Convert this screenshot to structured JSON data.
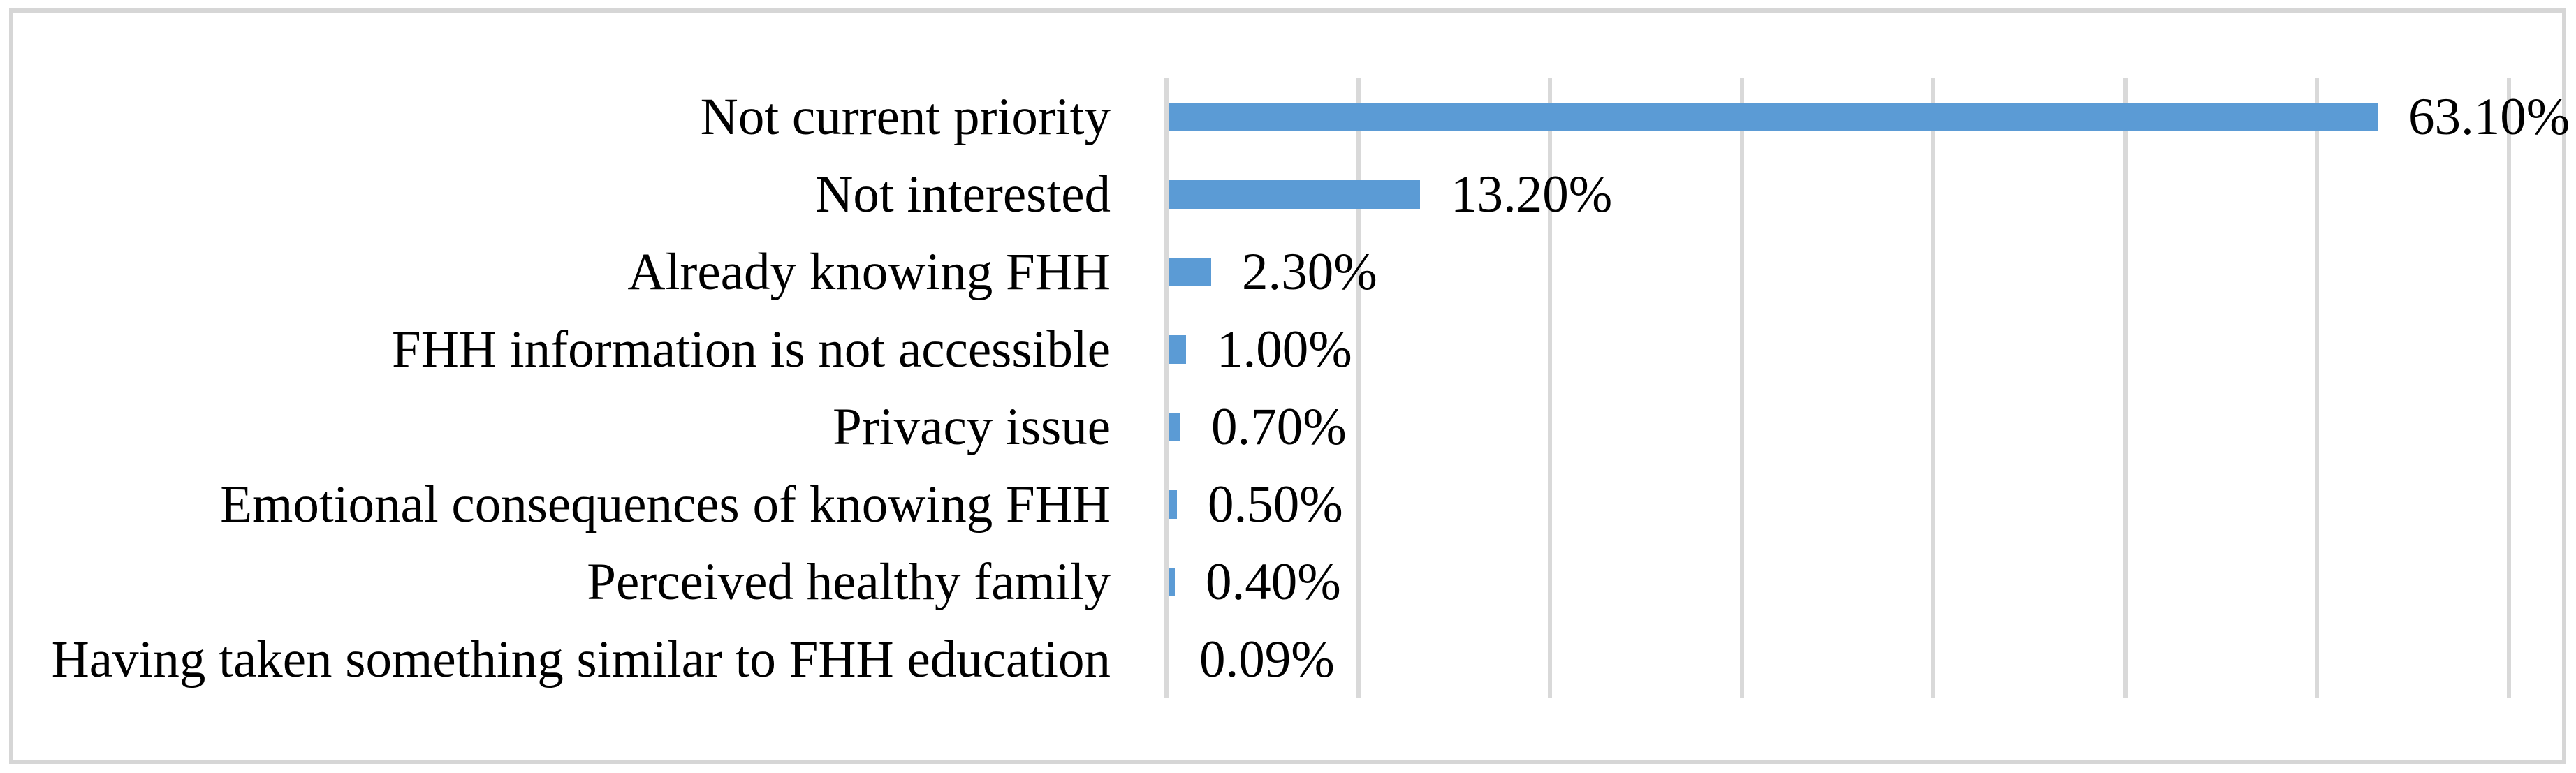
{
  "chart_data": {
    "type": "bar",
    "orientation": "horizontal",
    "title": "",
    "xlabel": "",
    "ylabel": "",
    "categories": [
      "Not current priority",
      "Not interested",
      "Already knowing FHH",
      "FHH information is not accessible",
      "Privacy issue",
      "Emotional consequences of knowing FHH",
      "Perceived healthy family",
      "Having taken something similar to FHH education"
    ],
    "values": [
      63.1,
      13.2,
      2.3,
      1.0,
      0.7,
      0.5,
      0.4,
      0.09
    ],
    "value_labels": [
      "63.10%",
      "13.20%",
      "2.30%",
      "1.00%",
      "0.70%",
      "0.50%",
      "0.40%",
      "0.09%"
    ],
    "xlim": [
      0,
      70
    ],
    "gridline_step": 10,
    "grid": true,
    "legend": false,
    "axis_tick_labels_visible": false,
    "bar_color": "#5b9bd5",
    "gridline_color": "#d9d9d9",
    "frame_color": "#d6d6d6",
    "text_color": "#000000",
    "background_color": "#ffffff"
  }
}
